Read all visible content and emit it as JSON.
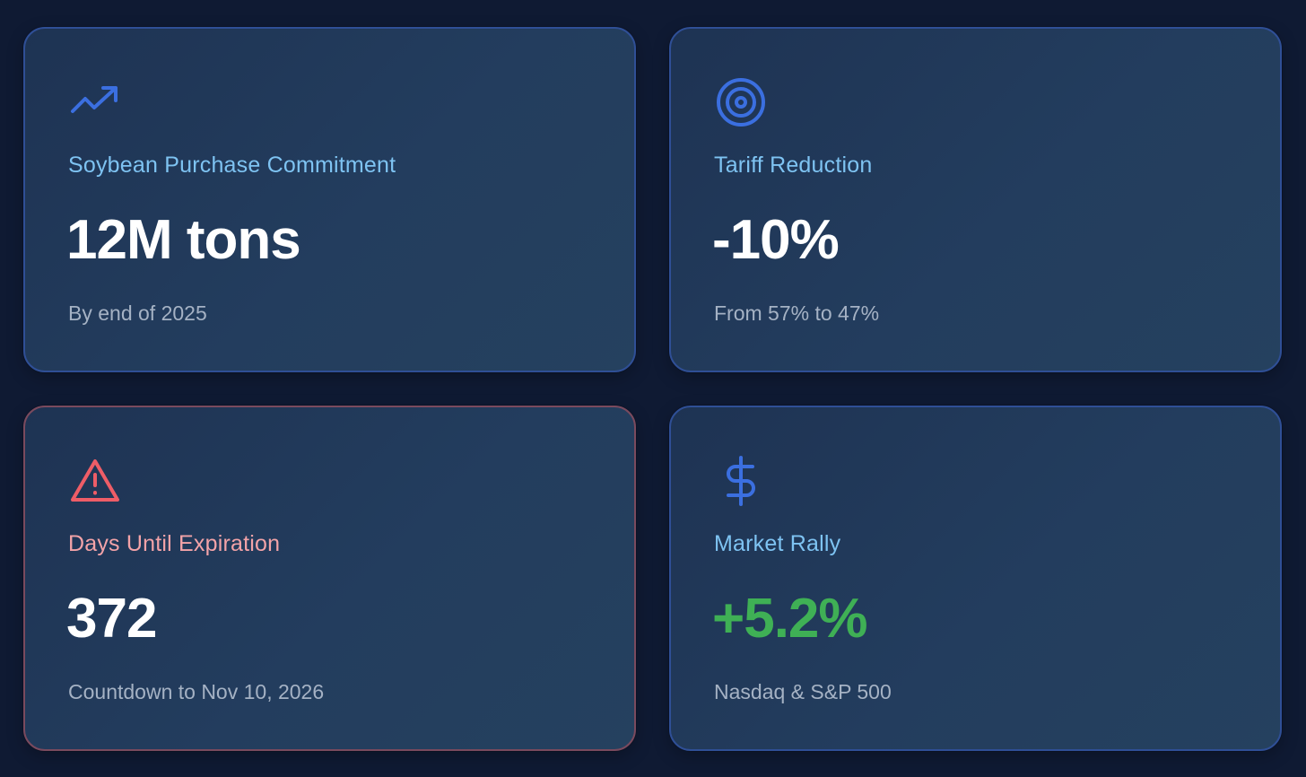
{
  "cards": [
    {
      "icon": "trending-up-icon",
      "label": "Soybean Purchase Commitment",
      "value": "12M tons",
      "subtext": "By end of 2025",
      "accent": "#3b6fe0"
    },
    {
      "icon": "target-icon",
      "label": "Tariff Reduction",
      "value": "-10%",
      "subtext": "From 57% to 47%",
      "accent": "#3b6fe0"
    },
    {
      "icon": "alert-triangle-icon",
      "label": "Days Until Expiration",
      "value": "372",
      "subtext": "Countdown to Nov 10, 2026",
      "accent": "#ee5d67"
    },
    {
      "icon": "dollar-sign-icon",
      "label": "Market Rally",
      "value": "+5.2%",
      "subtext": "Nasdaq & S&P 500",
      "accent": "#3b6fe0",
      "value_color": "#3fb055"
    }
  ]
}
